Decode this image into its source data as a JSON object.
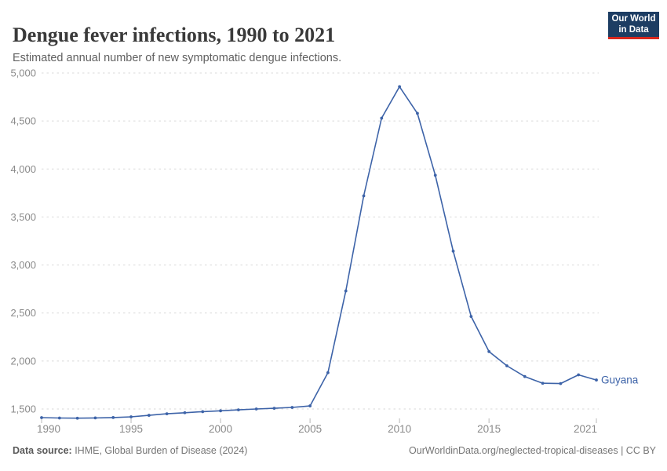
{
  "header": {
    "title": "Dengue fever infections, 1990 to 2021",
    "subtitle": "Estimated annual number of new symptomatic dengue infections.",
    "logo": {
      "line1": "Our World",
      "line2": "in Data",
      "bg_color": "#1d3d63",
      "accent_color": "#d8281e"
    }
  },
  "chart_data": {
    "type": "line",
    "title": "Dengue fever infections, 1990 to 2021",
    "xlabel": "",
    "ylabel": "",
    "x": [
      1990,
      1991,
      1992,
      1993,
      1994,
      1995,
      1996,
      1997,
      1998,
      1999,
      2000,
      2001,
      2002,
      2003,
      2004,
      2005,
      2006,
      2007,
      2008,
      2009,
      2010,
      2011,
      2012,
      2013,
      2014,
      2015,
      2016,
      2017,
      2018,
      2019,
      2020,
      2021
    ],
    "series": [
      {
        "name": "Guyana",
        "color": "#3d63a8",
        "values": [
          1410,
          1406,
          1404,
          1407,
          1411,
          1418,
          1434,
          1450,
          1461,
          1472,
          1481,
          1491,
          1500,
          1507,
          1516,
          1532,
          1878,
          2730,
          3720,
          4530,
          4858,
          4580,
          3935,
          3145,
          2464,
          2098,
          1950,
          1838,
          1768,
          1765,
          1856,
          1802
        ]
      }
    ],
    "xticks": [
      1990,
      1995,
      2000,
      2005,
      2010,
      2015,
      2021
    ],
    "yticks": [
      1500,
      2000,
      2500,
      3000,
      3500,
      4000,
      4500,
      5000
    ],
    "ytick_labels": [
      "1,500",
      "2,000",
      "2,500",
      "3,000",
      "3,500",
      "4,000",
      "4,500",
      "5,000"
    ],
    "xlim": [
      1990,
      2021
    ],
    "ylim": [
      1400,
      5000
    ],
    "legend_position": "end-of-line-label",
    "grid": "horizontal-dashed",
    "gridline_color": "#d9d9d9",
    "tick_label_color": "#8a8a8a",
    "tick_mark_color": "#b8b8b8"
  },
  "footer": {
    "source_label": "Data source:",
    "source_text": " IHME, Global Burden of Disease (2024)",
    "link_text": "OurWorldinData.org/neglected-tropical-diseases | CC BY"
  }
}
